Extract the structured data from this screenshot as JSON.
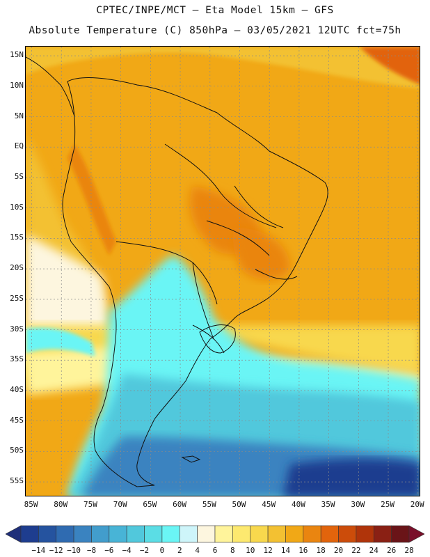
{
  "header": {
    "line1": "CPTEC/INPE/MCT –  Eta Model 15km – GFS",
    "line2": "Absolute Temperature (C) 850hPa – 03/05/2021 12UTC fct=75h"
  },
  "map": {
    "lat_labels": [
      "15N",
      "10N",
      "5N",
      "EQ",
      "5S",
      "10S",
      "15S",
      "20S",
      "25S",
      "30S",
      "35S",
      "40S",
      "45S",
      "50S",
      "55S"
    ],
    "lon_labels": [
      "85W",
      "80W",
      "75W",
      "70W",
      "65W",
      "60W",
      "55W",
      "50W",
      "45W",
      "40W",
      "35W",
      "30W",
      "25W",
      "20W"
    ],
    "lat_range": [
      -57.5,
      16.5
    ],
    "lon_range": [
      -86,
      -19.5
    ]
  },
  "legend": {
    "labels": [
      "-14",
      "-12",
      "-10",
      "-8",
      "-6",
      "-4",
      "-2",
      "0",
      "2",
      "4",
      "6",
      "8",
      "10",
      "12",
      "14",
      "16",
      "18",
      "20",
      "22",
      "24",
      "26",
      "28"
    ],
    "colors": [
      "#1e3d8f",
      "#25539f",
      "#2f6bb1",
      "#3a83c0",
      "#429dcc",
      "#48b4d6",
      "#51c8dc",
      "#5bdde5",
      "#6af5f5",
      "#cef5fa",
      "#fdf6df",
      "#fff49b",
      "#fde96f",
      "#f8d84d",
      "#f3c132",
      "#f1a816",
      "#ea8510",
      "#e2640c",
      "#cc4c0a",
      "#b0340a",
      "#8a2014",
      "#6a1418"
    ],
    "min_color": "#1f2f7a",
    "max_color": "#7a0f2a"
  }
}
